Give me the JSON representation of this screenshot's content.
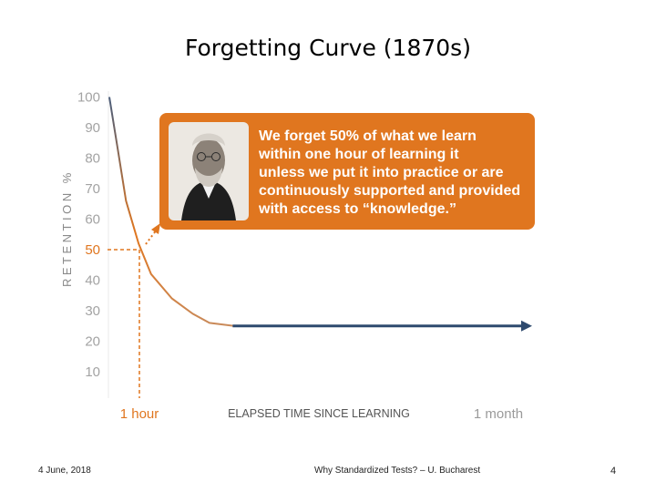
{
  "slide": {
    "title": "Forgetting Curve (1870s)",
    "footer_date": "4 June, 2018",
    "footer_center": "Why Standardized Tests? – U. Bucharest",
    "page_number": "4"
  },
  "chart_data": {
    "type": "line",
    "title": "Forgetting Curve (1870s)",
    "ylabel": "RETENTION %",
    "xlabel": "ELAPSED TIME SINCE LEARNING",
    "x_tick_labels": [
      "1 hour",
      "1 month"
    ],
    "y_ticks": [
      100,
      90,
      80,
      70,
      60,
      50,
      40,
      30,
      20,
      10
    ],
    "ylim": [
      0,
      100
    ],
    "highlight_y": 50,
    "series": [
      {
        "points": [
          {
            "t": 0,
            "y": 100
          },
          {
            "t": 0.02,
            "y": 83
          },
          {
            "t": 0.04,
            "y": 66
          },
          {
            "t": 0.07,
            "y": 52
          },
          {
            "t": 0.1,
            "y": 42
          },
          {
            "t": 0.15,
            "y": 34
          },
          {
            "t": 0.2,
            "y": 29
          },
          {
            "t": 0.24,
            "y": 26
          },
          {
            "t": 0.3,
            "y": 25
          },
          {
            "t": 1.0,
            "y": 25
          }
        ]
      }
    ],
    "grid": false,
    "colors": {
      "curve_start": "#4b5e7b",
      "curve_mid": "#e0761f",
      "flat_line": "#2e4a6e",
      "accent": "#e0761f"
    },
    "callout": {
      "image": "portrait-photo",
      "lines": [
        "We forget 50% of what we learn",
        "within one hour of learning it",
        "unless we put it into practice or are",
        "continuously supported and provided",
        "with access to “knowledge.”"
      ],
      "background": "#e0761f"
    }
  }
}
